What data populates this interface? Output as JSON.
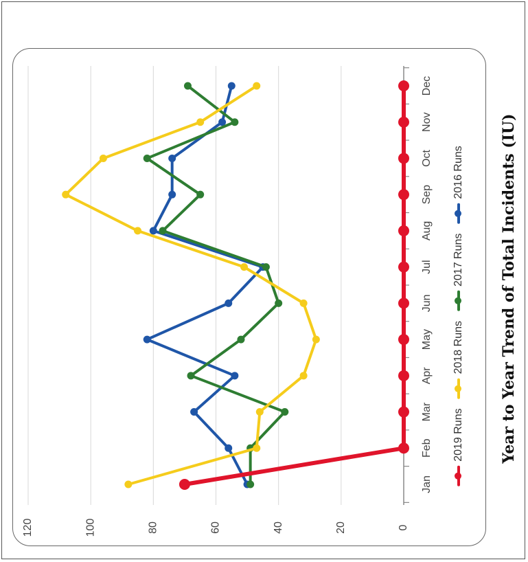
{
  "chart_data": {
    "type": "line",
    "title": "Year to Year Trend of Total Incidents (IU)",
    "xlabel": "",
    "ylabel": "",
    "categories": [
      "Jan",
      "Feb",
      "Mar",
      "Apr",
      "May",
      "Jun",
      "Jul",
      "Aug",
      "Sep",
      "Oct",
      "Nov",
      "Dec"
    ],
    "ylim": [
      0,
      120
    ],
    "yticks": [
      0,
      20,
      40,
      60,
      80,
      100,
      120
    ],
    "grid": true,
    "legend_position": "bottom",
    "series": [
      {
        "name": "2019 Runs",
        "color": "#e0142b",
        "values": [
          70,
          0,
          0,
          0,
          0,
          0,
          0,
          0,
          0,
          0,
          0,
          0
        ]
      },
      {
        "name": "2018 Runs",
        "color": "#f5cc1c",
        "values": [
          88,
          47,
          46,
          32,
          28,
          32,
          51,
          85,
          108,
          96,
          65,
          47
        ]
      },
      {
        "name": "2017 Runs",
        "color": "#2e7d32",
        "values": [
          49,
          49,
          38,
          68,
          52,
          40,
          44,
          77,
          65,
          82,
          54,
          69
        ]
      },
      {
        "name": "2016 Runs",
        "color": "#1f56a8",
        "values": [
          50,
          56,
          67,
          54,
          82,
          56,
          45,
          80,
          74,
          74,
          58,
          55
        ]
      }
    ]
  }
}
